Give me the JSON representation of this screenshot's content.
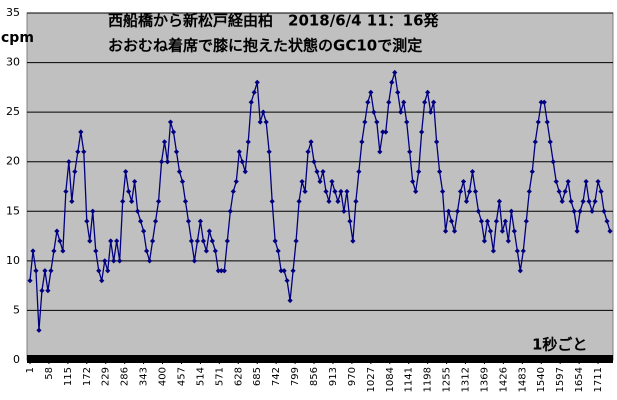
{
  "chart_data": {
    "type": "line",
    "title": "西船橋から新松戸経由柏　2018/6/4 11：16発",
    "subtitle": "おおむね着席で膝に抱えた状態のGC10で測定",
    "y_label": "cpm",
    "annotation": "1秒ごと",
    "x": [
      1,
      10,
      19,
      28,
      37,
      46,
      55,
      64,
      73,
      82,
      91,
      100,
      109,
      118,
      127,
      136,
      145,
      154,
      163,
      172,
      181,
      190,
      199,
      208,
      217,
      226,
      235,
      244,
      253,
      262,
      271,
      280,
      289,
      298,
      307,
      316,
      325,
      334,
      343,
      352,
      361,
      370,
      379,
      388,
      397,
      406,
      415,
      424,
      433,
      442,
      451,
      460,
      469,
      478,
      487,
      496,
      505,
      514,
      523,
      532,
      541,
      550,
      559,
      568,
      577,
      586,
      595,
      604,
      613,
      622,
      631,
      640,
      649,
      658,
      667,
      676,
      685,
      694,
      703,
      712,
      721,
      730,
      739,
      748,
      757,
      766,
      775,
      784,
      793,
      802,
      811,
      820,
      829,
      838,
      847,
      856,
      865,
      874,
      883,
      892,
      901,
      910,
      919,
      928,
      937,
      946,
      955,
      964,
      973,
      982,
      991,
      1000,
      1009,
      1018,
      1027,
      1036,
      1045,
      1054,
      1063,
      1072,
      1081,
      1090,
      1099,
      1108,
      1117,
      1126,
      1135,
      1144,
      1153,
      1162,
      1171,
      1180,
      1189,
      1198,
      1207,
      1216,
      1225,
      1234,
      1243,
      1252,
      1261,
      1270,
      1279,
      1288,
      1297,
      1306,
      1315,
      1324,
      1333,
      1342,
      1351,
      1360,
      1369,
      1378,
      1387,
      1396,
      1405,
      1414,
      1423,
      1432,
      1441,
      1450,
      1459,
      1468,
      1477,
      1486,
      1495,
      1504,
      1513,
      1522,
      1531,
      1540,
      1549,
      1558,
      1567,
      1576,
      1585,
      1594,
      1603,
      1612,
      1621,
      1630,
      1639,
      1648,
      1657,
      1666,
      1675,
      1684,
      1693,
      1702,
      1711,
      1720,
      1729,
      1738,
      1747
    ],
    "series": [
      {
        "color": "#000080",
        "values": [
          8,
          11,
          9,
          3,
          7,
          9,
          7,
          9,
          11,
          13,
          12,
          11,
          17,
          20,
          16,
          19,
          21,
          23,
          21,
          14,
          12,
          15,
          11,
          9,
          8,
          10,
          9,
          12,
          10,
          12,
          10,
          16,
          19,
          17,
          16,
          18,
          15,
          14,
          13,
          11,
          10,
          12,
          14,
          16,
          20,
          22,
          20,
          24,
          23,
          21,
          19,
          18,
          16,
          14,
          12,
          10,
          12,
          14,
          12,
          11,
          13,
          12,
          11,
          9,
          9,
          9,
          12,
          15,
          17,
          18,
          21,
          20,
          19,
          22,
          26,
          27,
          28,
          24,
          25,
          24,
          21,
          16,
          12,
          11,
          9,
          9,
          8,
          6,
          9,
          12,
          16,
          18,
          17,
          21,
          22,
          20,
          19,
          18,
          19,
          17,
          16,
          18,
          17,
          16,
          17,
          15,
          17,
          14,
          12,
          16,
          19,
          22,
          24,
          26,
          27,
          25,
          24,
          21,
          23,
          23,
          26,
          28,
          29,
          27,
          25,
          26,
          24,
          21,
          18,
          17,
          19,
          23,
          26,
          27,
          25,
          26,
          22,
          19,
          17,
          13,
          15,
          14,
          13,
          15,
          17,
          18,
          16,
          17,
          19,
          17,
          15,
          14,
          12,
          14,
          13,
          11,
          14,
          16,
          13,
          14,
          12,
          15,
          13,
          11,
          9,
          11,
          14,
          17,
          19,
          22,
          24,
          26,
          26,
          24,
          22,
          20,
          18,
          17,
          16,
          17,
          18,
          16,
          15,
          13,
          15,
          16,
          18,
          16,
          15,
          16,
          18,
          17,
          15,
          14,
          13
        ]
      }
    ],
    "xlim": [
      -8,
      1756
    ],
    "xticks": [
      1,
      58,
      115,
      172,
      229,
      286,
      343,
      400,
      457,
      514,
      571,
      628,
      685,
      742,
      799,
      856,
      913,
      970,
      1027,
      1084,
      1141,
      1198,
      1255,
      1312,
      1369,
      1426,
      1483,
      1540,
      1597,
      1654,
      1711
    ],
    "ylim": [
      0,
      35
    ],
    "yticks": [
      0,
      5,
      10,
      15,
      20,
      25,
      30,
      35
    ],
    "grid": true,
    "background": "#c0c0c0"
  }
}
